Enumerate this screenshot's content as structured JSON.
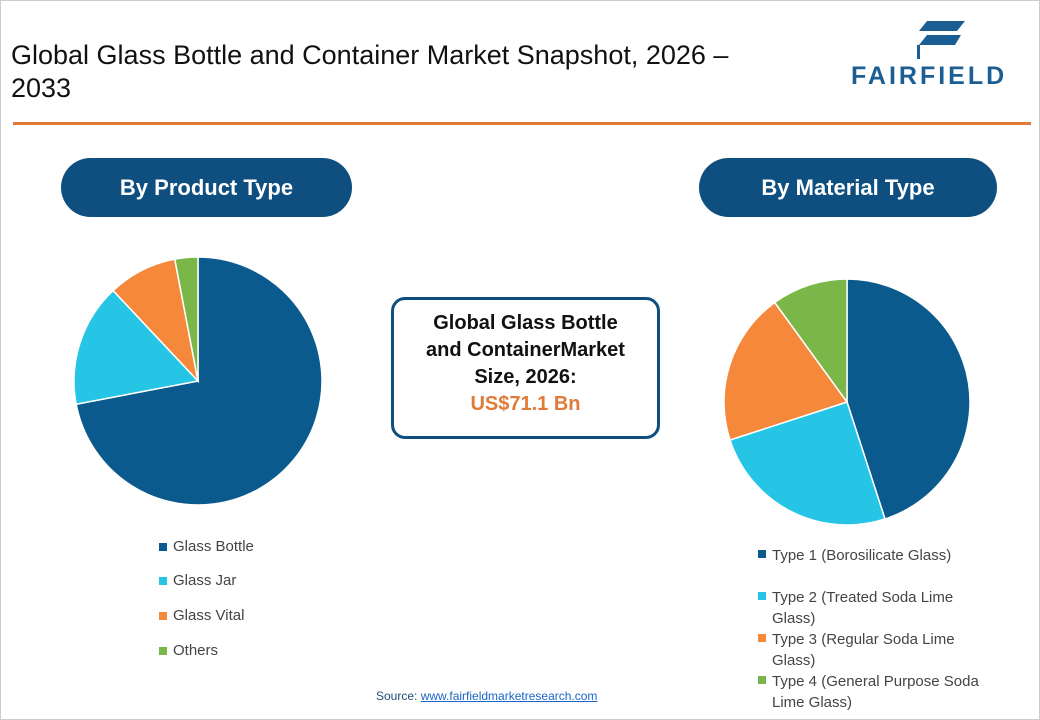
{
  "title": "Global Glass Bottle and Container Market Snapshot, 2026 – 2033",
  "logo": {
    "text": "FAIRFIELD"
  },
  "center": {
    "line1": "Global Glass Bottle",
    "line2": "and ContainerMarket",
    "line3": "Size, 2026:",
    "value": "US$71.1 Bn"
  },
  "source": {
    "label": "Source:",
    "link": "www.fairfieldmarketresearch.com"
  },
  "chart_data": [
    {
      "type": "pie",
      "title": "By Product Type",
      "categories": [
        "Glass Bottle",
        "Glass Jar",
        "Glass Vital",
        "Others"
      ],
      "values": [
        72,
        16,
        9,
        3
      ],
      "colors": [
        "#0b5a8e",
        "#26c4e5",
        "#f5883a",
        "#7ab648"
      ],
      "legend": "bottom"
    },
    {
      "type": "pie",
      "title": "By Material Type",
      "categories": [
        "Type 1 (Borosilicate Glass)",
        "Type 2 (Treated Soda Lime Glass)",
        "Type 3 (Regular Soda Lime Glass)",
        "Type 4 (General Purpose Soda Lime Glass)"
      ],
      "values": [
        45,
        25,
        20,
        10
      ],
      "colors": [
        "#0b5a8e",
        "#26c4e5",
        "#f5883a",
        "#7ab648"
      ],
      "legend": "bottom"
    }
  ]
}
